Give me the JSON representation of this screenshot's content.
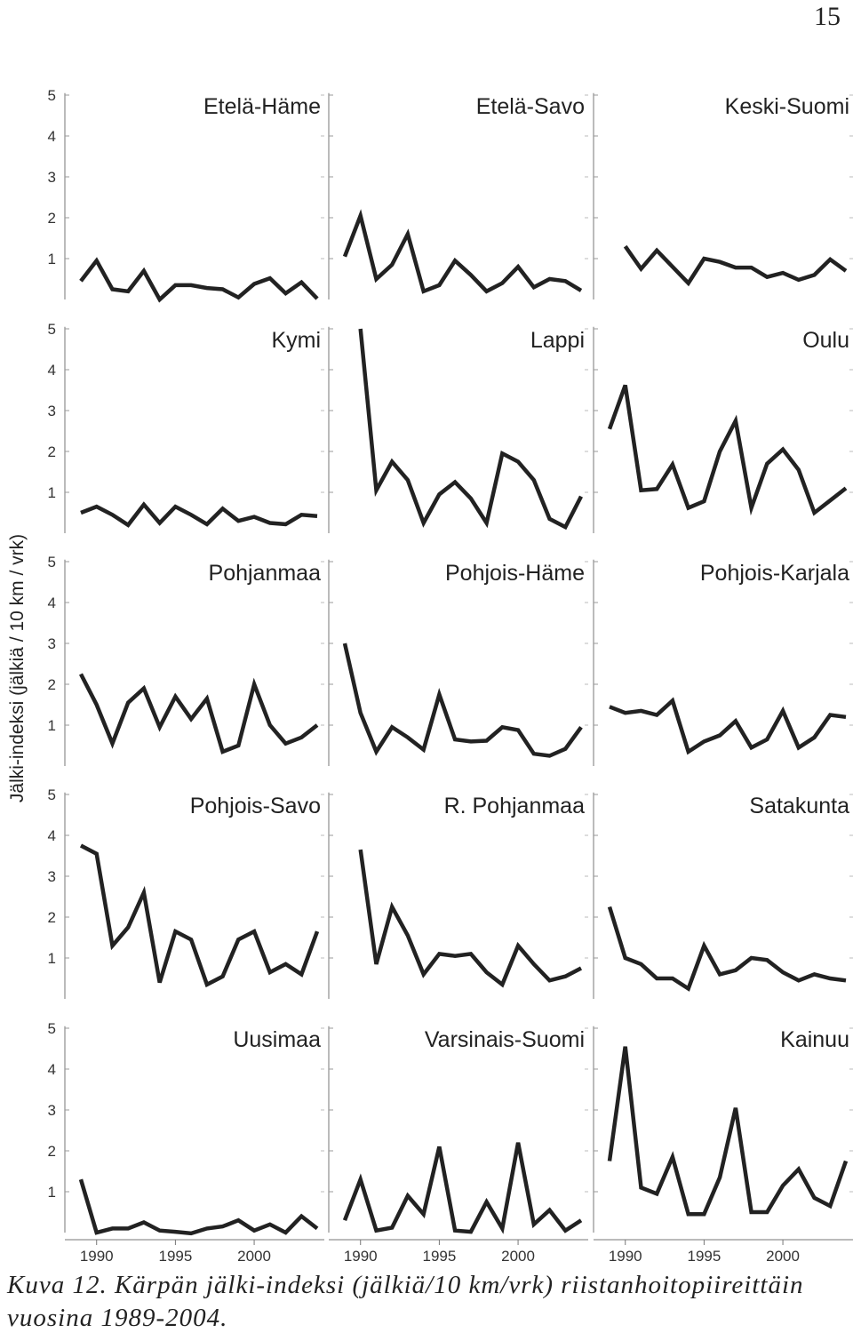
{
  "page_number": "15",
  "caption": {
    "label": "Kuva 12.",
    "text": "Kärpän jälki-indeksi (jälkiä/10 km/vrk) riistanhoitopiireittäin vuosina 1989-2004."
  },
  "chart_data": {
    "type": "line",
    "layout": "small-multiples 5 rows x 3 columns",
    "ylabel": "Jälki-indeksi (jälkiä / 10 km / vrk)",
    "ylim": [
      0,
      5
    ],
    "yticks": [
      "1",
      "2",
      "3",
      "4",
      "5"
    ],
    "x_tick_labels": [
      "1990",
      "1995",
      "2000"
    ],
    "x_ticks": [
      1990,
      1995,
      2000
    ],
    "grid": false,
    "line_color": "#222222",
    "panels": [
      {
        "title": "Etelä-Häme",
        "x": [
          1989,
          1990,
          1991,
          1992,
          1993,
          1994,
          1995,
          1996,
          1997,
          1998,
          1999,
          2000,
          2001,
          2002,
          2003,
          2004
        ],
        "values": [
          0.45,
          0.95,
          0.25,
          0.2,
          0.7,
          0.0,
          0.35,
          0.35,
          0.28,
          0.25,
          0.05,
          0.38,
          0.52,
          0.15,
          0.42,
          0.02
        ]
      },
      {
        "title": "Etelä-Savo",
        "x": [
          1989,
          1990,
          1991,
          1992,
          1993,
          1994,
          1995,
          1996,
          1997,
          1998,
          1999,
          2000,
          2001,
          2002,
          2003,
          2004
        ],
        "values": [
          1.05,
          2.05,
          0.5,
          0.85,
          1.6,
          0.2,
          0.35,
          0.95,
          0.6,
          0.2,
          0.4,
          0.8,
          0.3,
          0.5,
          0.45,
          0.22
        ]
      },
      {
        "title": "Keski-Suomi",
        "x": [
          1990,
          1991,
          1992,
          1993,
          1994,
          1995,
          1996,
          1997,
          1998,
          1999,
          2000,
          2001,
          2002,
          2003,
          2004
        ],
        "values": [
          1.3,
          0.75,
          1.2,
          0.8,
          0.4,
          1.0,
          0.92,
          0.78,
          0.78,
          0.55,
          0.65,
          0.48,
          0.6,
          0.98,
          0.7
        ]
      },
      {
        "title": "Kymi",
        "x": [
          1989,
          1990,
          1991,
          1992,
          1993,
          1994,
          1995,
          1996,
          1997,
          1998,
          1999,
          2000,
          2001,
          2002,
          2003,
          2004
        ],
        "values": [
          0.5,
          0.65,
          0.45,
          0.2,
          0.7,
          0.25,
          0.65,
          0.45,
          0.22,
          0.6,
          0.3,
          0.4,
          0.25,
          0.22,
          0.45,
          0.42
        ]
      },
      {
        "title": "Lappi",
        "x": [
          1990,
          1991,
          1992,
          1993,
          1994,
          1995,
          1996,
          1997,
          1998,
          1999,
          2000,
          2001,
          2002,
          2003,
          2004
        ],
        "values": [
          5.0,
          1.05,
          1.75,
          1.3,
          0.25,
          0.95,
          1.25,
          0.85,
          0.25,
          1.95,
          1.75,
          1.3,
          0.35,
          0.15,
          0.9
        ]
      },
      {
        "title": "Oulu",
        "x": [
          1989,
          1990,
          1991,
          1992,
          1993,
          1994,
          1995,
          1996,
          1997,
          1998,
          1999,
          2000,
          2001,
          2002,
          2003,
          2004
        ],
        "values": [
          2.55,
          3.62,
          1.05,
          1.08,
          1.68,
          0.62,
          0.78,
          2.0,
          2.75,
          0.62,
          1.7,
          2.05,
          1.55,
          0.5,
          0.8,
          1.1
        ]
      },
      {
        "title": "Pohjanmaa",
        "x": [
          1989,
          1990,
          1991,
          1992,
          1993,
          1994,
          1995,
          1996,
          1997,
          1998,
          1999,
          2000,
          2001,
          2002,
          2003,
          2004
        ],
        "values": [
          2.25,
          1.5,
          0.55,
          1.55,
          1.9,
          0.95,
          1.7,
          1.15,
          1.65,
          0.35,
          0.5,
          2.0,
          1.0,
          0.55,
          0.7,
          1.0
        ]
      },
      {
        "title": "Pohjois-Häme",
        "x": [
          1989,
          1990,
          1991,
          1992,
          1993,
          1994,
          1995,
          1996,
          1997,
          1998,
          1999,
          2000,
          2001,
          2002,
          2003,
          2004
        ],
        "values": [
          3.0,
          1.3,
          0.35,
          0.95,
          0.7,
          0.4,
          1.75,
          0.65,
          0.6,
          0.62,
          0.95,
          0.88,
          0.3,
          0.25,
          0.42,
          0.95
        ]
      },
      {
        "title": "Pohjois-Karjala",
        "x": [
          1989,
          1990,
          1991,
          1992,
          1993,
          1994,
          1995,
          1996,
          1997,
          1998,
          1999,
          2000,
          2001,
          2002,
          2003,
          2004
        ],
        "values": [
          1.45,
          1.3,
          1.35,
          1.25,
          1.6,
          0.35,
          0.6,
          0.75,
          1.1,
          0.45,
          0.65,
          1.35,
          0.45,
          0.7,
          1.25,
          1.2
        ]
      },
      {
        "title": "Pohjois-Savo",
        "x": [
          1989,
          1990,
          1991,
          1992,
          1993,
          1994,
          1995,
          1996,
          1997,
          1998,
          1999,
          2000,
          2001,
          2002,
          2003,
          2004
        ],
        "values": [
          3.75,
          3.55,
          1.3,
          1.75,
          2.6,
          0.4,
          1.65,
          1.45,
          0.35,
          0.55,
          1.45,
          1.65,
          0.65,
          0.85,
          0.6,
          1.65
        ]
      },
      {
        "title": "R. Pohjanmaa",
        "x": [
          1990,
          1991,
          1992,
          1993,
          1994,
          1995,
          1996,
          1997,
          1998,
          1999,
          2000,
          2001,
          2002,
          2003,
          2004
        ],
        "values": [
          3.65,
          0.85,
          2.25,
          1.55,
          0.6,
          1.1,
          1.05,
          1.1,
          0.65,
          0.35,
          1.3,
          0.85,
          0.45,
          0.55,
          0.75
        ]
      },
      {
        "title": "Satakunta",
        "x": [
          1989,
          1990,
          1991,
          1992,
          1993,
          1994,
          1995,
          1996,
          1997,
          1998,
          1999,
          2000,
          2001,
          2002,
          2003,
          2004
        ],
        "values": [
          2.25,
          1.0,
          0.85,
          0.5,
          0.5,
          0.25,
          1.3,
          0.6,
          0.7,
          1.0,
          0.95,
          0.65,
          0.45,
          0.6,
          0.5,
          0.45
        ]
      },
      {
        "title": "Uusimaa",
        "x": [
          1989,
          1990,
          1991,
          1992,
          1993,
          1994,
          1995,
          1996,
          1997,
          1998,
          1999,
          2000,
          2001,
          2002,
          2003,
          2004
        ],
        "values": [
          1.3,
          0.0,
          0.1,
          0.1,
          0.25,
          0.05,
          0.02,
          -0.02,
          0.1,
          0.15,
          0.3,
          0.05,
          0.2,
          0.0,
          0.4,
          0.1
        ]
      },
      {
        "title": "Varsinais-Suomi",
        "x": [
          1989,
          1990,
          1991,
          1992,
          1993,
          1994,
          1995,
          1996,
          1997,
          1998,
          1999,
          2000,
          2001,
          2002,
          2003,
          2004
        ],
        "values": [
          0.3,
          1.3,
          0.05,
          0.12,
          0.9,
          0.45,
          2.1,
          0.05,
          0.02,
          0.75,
          0.1,
          2.2,
          0.2,
          0.55,
          0.05,
          0.3
        ]
      },
      {
        "title": "Kainuu",
        "x": [
          1989,
          1990,
          1991,
          1992,
          1993,
          1994,
          1995,
          1996,
          1997,
          1998,
          1999,
          2000,
          2001,
          2002,
          2003,
          2004
        ],
        "values": [
          1.75,
          4.55,
          1.1,
          0.95,
          1.85,
          0.45,
          0.45,
          1.35,
          3.05,
          0.5,
          0.5,
          1.15,
          1.55,
          0.85,
          0.65,
          1.75
        ]
      }
    ]
  }
}
